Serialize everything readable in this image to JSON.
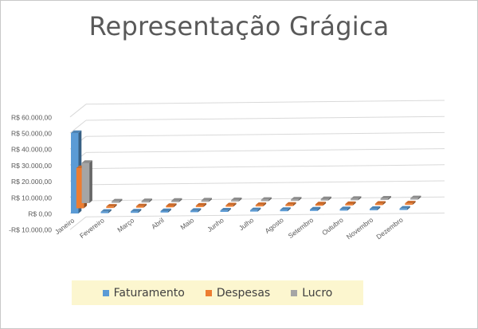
{
  "chart_data": {
    "type": "bar",
    "title": "Representação Grágica",
    "categories": [
      "Janeiro",
      "Fevereiro",
      "Março",
      "Abril",
      "Maio",
      "Junho",
      "Julho",
      "Agosto",
      "Setembro",
      "Outubro",
      "Novembro",
      "Dezembro"
    ],
    "series": [
      {
        "name": "Faturamento",
        "color": "#5b9bd5",
        "values": [
          50000,
          0,
          0,
          0,
          0,
          0,
          0,
          0,
          0,
          0,
          0,
          0
        ]
      },
      {
        "name": "Despesas",
        "color": "#ed7d31",
        "values": [
          25000,
          0,
          0,
          0,
          0,
          0,
          0,
          0,
          0,
          0,
          0,
          0
        ]
      },
      {
        "name": "Lucro",
        "color": "#a5a5a5",
        "values": [
          25000,
          0,
          0,
          0,
          0,
          0,
          0,
          0,
          0,
          0,
          0,
          0
        ]
      }
    ],
    "y_ticks": [
      "-R$ 10.000,00",
      "R$ 0,00",
      "R$ 10.000,00",
      "R$ 20.000,00",
      "R$ 30.000,00",
      "R$ 40.000,00",
      "R$ 50.000,00",
      "R$ 60.000,00"
    ],
    "ylim": [
      -10000,
      60000
    ],
    "grid": true,
    "legend_position": "bottom"
  }
}
